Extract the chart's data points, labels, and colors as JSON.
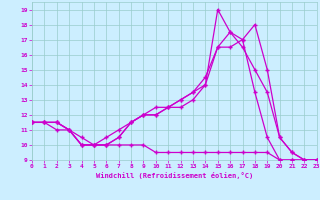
{
  "xlabel": "Windchill (Refroidissement éolien,°C)",
  "bg_color": "#cceeff",
  "grid_color": "#99cccc",
  "line_color": "#cc00cc",
  "xmin": 0,
  "xmax": 23,
  "ymin": 9,
  "ymax": 19.5,
  "line1_x": [
    0,
    1,
    2,
    3,
    4,
    5,
    6,
    7,
    8,
    9,
    10,
    11,
    12,
    13,
    14,
    15,
    16,
    17,
    18,
    19,
    20,
    21,
    22,
    23
  ],
  "line1_y": [
    11.5,
    11.5,
    11.5,
    11.0,
    10.5,
    10.0,
    10.5,
    11.0,
    11.5,
    12.0,
    12.5,
    12.5,
    13.0,
    13.5,
    14.0,
    19.0,
    17.5,
    16.5,
    15.0,
    13.5,
    10.5,
    9.5,
    9.0,
    9.0
  ],
  "line2_x": [
    0,
    1,
    2,
    3,
    4,
    5,
    6,
    7,
    8,
    9,
    10,
    11,
    12,
    13,
    14,
    15,
    16,
    17,
    18,
    19,
    20,
    21,
    22,
    23
  ],
  "line2_y": [
    11.5,
    11.5,
    11.5,
    11.0,
    10.0,
    10.0,
    10.0,
    10.5,
    11.5,
    12.0,
    12.0,
    12.5,
    12.5,
    13.0,
    14.0,
    16.5,
    17.5,
    17.0,
    18.0,
    15.0,
    10.5,
    9.5,
    9.0,
    9.0
  ],
  "line3_x": [
    0,
    1,
    2,
    3,
    4,
    5,
    6,
    7,
    8,
    9,
    10,
    11,
    12,
    13,
    14,
    15,
    16,
    17,
    18,
    19,
    20,
    21,
    22,
    23
  ],
  "line3_y": [
    11.5,
    11.5,
    11.5,
    11.0,
    10.0,
    10.0,
    10.0,
    10.5,
    11.5,
    12.0,
    12.0,
    12.5,
    13.0,
    13.5,
    14.5,
    16.5,
    16.5,
    17.0,
    13.5,
    10.5,
    9.0,
    9.0,
    9.0,
    9.0
  ],
  "line4_x": [
    0,
    1,
    2,
    3,
    4,
    5,
    6,
    7,
    8,
    9,
    10,
    11,
    12,
    13,
    14,
    15,
    16,
    17,
    18,
    19,
    20,
    21,
    22,
    23
  ],
  "line4_y": [
    11.5,
    11.5,
    11.0,
    11.0,
    10.0,
    10.0,
    10.0,
    10.0,
    10.0,
    10.0,
    9.5,
    9.5,
    9.5,
    9.5,
    9.5,
    9.5,
    9.5,
    9.5,
    9.5,
    9.5,
    9.0,
    9.0,
    9.0,
    9.0
  ],
  "xticks": [
    0,
    1,
    2,
    3,
    4,
    5,
    6,
    7,
    8,
    9,
    10,
    11,
    12,
    13,
    14,
    15,
    16,
    17,
    18,
    19,
    20,
    21,
    22,
    23
  ],
  "yticks": [
    9,
    10,
    11,
    12,
    13,
    14,
    15,
    16,
    17,
    18,
    19
  ]
}
